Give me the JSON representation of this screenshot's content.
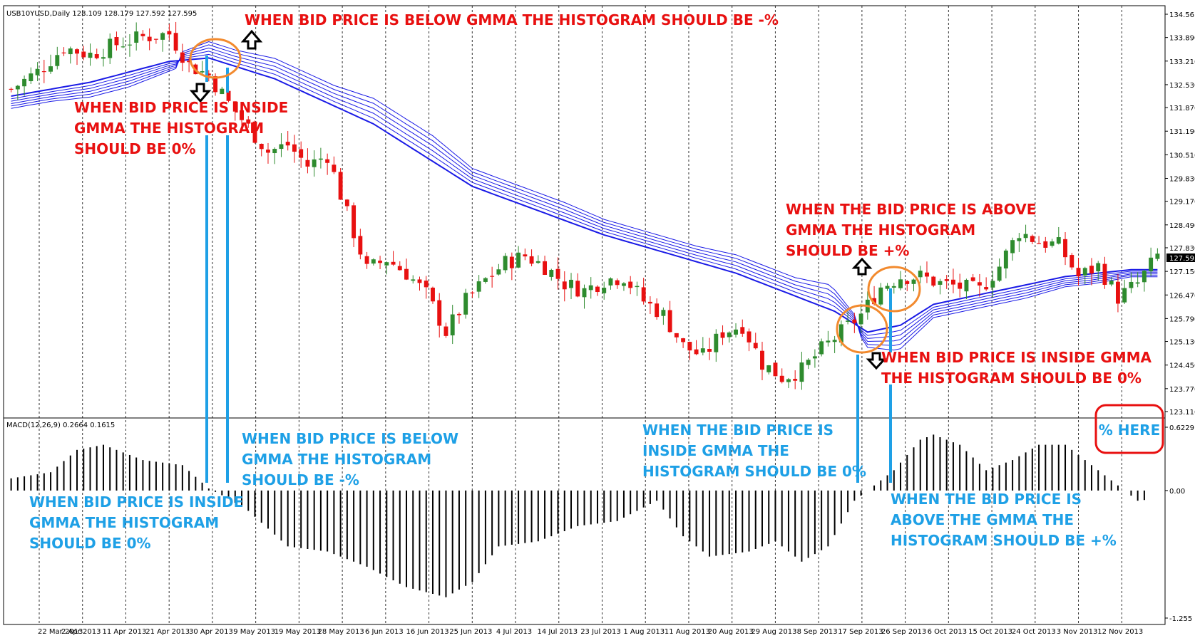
{
  "header": {
    "symbol_info": "USB10YUSD,Daily  128.109 128.179 127.592 127.595",
    "macd_info": "MACD(12,26,9) 0.2664 0.1615"
  },
  "colors": {
    "bull": "#2e8b2e",
    "bear": "#e81010",
    "gmma": "#1a1ae6",
    "histogram": "#000000",
    "anno_red": "#e81010",
    "anno_blue": "#1ea0e6",
    "circle": "#f28a2e",
    "marker": "#1ea0e6",
    "price_tag_bg": "#000000"
  },
  "chart_data": [
    {
      "type": "candlestick",
      "title": "",
      "yaxis_ticks": [
        "134.56",
        "133.890",
        "133.210",
        "132.530",
        "131.870",
        "131.190",
        "130.510",
        "129.830",
        "129.170",
        "128.490",
        "127.830",
        "127.150",
        "126.470",
        "125.790",
        "125.130",
        "124.450",
        "123.770",
        "123.110"
      ],
      "ylim": [
        123.11,
        134.56
      ],
      "current_price": "127.595",
      "xaxis_ticks": [
        "22 Mar 2013",
        "2 Apr 2013",
        "11 Apr 2013",
        "21 Apr 2013",
        "30 Apr 2013",
        "9 May 2013",
        "19 May 2013",
        "28 May 2013",
        "6 Jun 2013",
        "16 Jun 2013",
        "25 Jun 2013",
        "4 Jul 2013",
        "14 Jul 2013",
        "23 Jul 2013",
        "1 Aug 2013",
        "11 Aug 2013",
        "20 Aug 2013",
        "29 Aug 2013",
        "8 Sep 2013",
        "17 Sep 2013",
        "26 Sep 2013",
        "6 Oct 2013",
        "15 Oct 2013",
        "24 Oct 2013",
        "3 Nov 2013",
        "12 Nov 2013"
      ],
      "close_path": [
        [
          0,
          132.4
        ],
        [
          4,
          132.9
        ],
        [
          8,
          133.6
        ],
        [
          12,
          133.4
        ],
        [
          16,
          133.7
        ],
        [
          20,
          133.9
        ],
        [
          24,
          134.0
        ],
        [
          27,
          133.1
        ],
        [
          30,
          132.8
        ],
        [
          33,
          132.0
        ],
        [
          36,
          131.3
        ],
        [
          39,
          130.6
        ],
        [
          42,
          130.8
        ],
        [
          45,
          130.2
        ],
        [
          48,
          130.5
        ],
        [
          51,
          128.8
        ],
        [
          54,
          127.2
        ],
        [
          57,
          127.5
        ],
        [
          60,
          127.1
        ],
        [
          63,
          126.5
        ],
        [
          66,
          125.4
        ],
        [
          69,
          126.3
        ],
        [
          72,
          126.9
        ],
        [
          75,
          127.4
        ],
        [
          78,
          127.6
        ],
        [
          81,
          127.3
        ],
        [
          84,
          126.8
        ],
        [
          87,
          126.6
        ],
        [
          90,
          126.9
        ],
        [
          93,
          127.0
        ],
        [
          96,
          126.3
        ],
        [
          99,
          125.9
        ],
        [
          102,
          125.0
        ],
        [
          105,
          124.7
        ],
        [
          108,
          125.4
        ],
        [
          111,
          125.6
        ],
        [
          114,
          124.5
        ],
        [
          117,
          124.1
        ],
        [
          120,
          124.3
        ],
        [
          123,
          124.9
        ],
        [
          126,
          125.4
        ],
        [
          129,
          125.9
        ],
        [
          132,
          126.7
        ],
        [
          135,
          127.0
        ],
        [
          138,
          127.0
        ],
        [
          141,
          126.8
        ],
        [
          144,
          126.7
        ],
        [
          147,
          126.6
        ],
        [
          150,
          127.3
        ],
        [
          153,
          128.3
        ],
        [
          156,
          128.0
        ],
        [
          159,
          127.9
        ],
        [
          162,
          127.0
        ],
        [
          165,
          127.3
        ],
        [
          168,
          126.4
        ],
        [
          171,
          126.8
        ],
        [
          174,
          127.6
        ]
      ],
      "gmma_basis": [
        [
          0,
          132.2
        ],
        [
          12,
          132.6
        ],
        [
          24,
          133.2
        ],
        [
          30,
          133.3
        ],
        [
          40,
          132.7
        ],
        [
          55,
          131.4
        ],
        [
          70,
          129.6
        ],
        [
          90,
          128.2
        ],
        [
          110,
          127.1
        ],
        [
          125,
          126.0
        ],
        [
          130,
          125.4
        ],
        [
          135,
          125.6
        ],
        [
          140,
          126.2
        ],
        [
          150,
          126.6
        ],
        [
          160,
          127.0
        ],
        [
          170,
          127.2
        ],
        [
          174,
          127.2
        ]
      ],
      "histogram_path": [
        [
          0,
          0.12
        ],
        [
          6,
          0.18
        ],
        [
          10,
          0.4
        ],
        [
          14,
          0.45
        ],
        [
          20,
          0.3
        ],
        [
          26,
          0.25
        ],
        [
          30,
          0.02
        ],
        [
          33,
          -0.08
        ],
        [
          36,
          -0.2
        ],
        [
          42,
          -0.55
        ],
        [
          48,
          -0.6
        ],
        [
          54,
          -0.75
        ],
        [
          60,
          -0.95
        ],
        [
          66,
          -1.05
        ],
        [
          70,
          -0.9
        ],
        [
          74,
          -0.55
        ],
        [
          80,
          -0.5
        ],
        [
          86,
          -0.35
        ],
        [
          92,
          -0.3
        ],
        [
          98,
          -0.1
        ],
        [
          102,
          -0.45
        ],
        [
          106,
          -0.65
        ],
        [
          112,
          -0.6
        ],
        [
          116,
          -0.5
        ],
        [
          120,
          -0.7
        ],
        [
          124,
          -0.55
        ],
        [
          128,
          -0.1
        ],
        [
          130,
          0.0
        ],
        [
          134,
          0.2
        ],
        [
          138,
          0.5
        ],
        [
          140,
          0.55
        ],
        [
          144,
          0.45
        ],
        [
          148,
          0.2
        ],
        [
          152,
          0.3
        ],
        [
          156,
          0.45
        ],
        [
          160,
          0.45
        ],
        [
          164,
          0.25
        ],
        [
          168,
          0.05
        ],
        [
          171,
          -0.1
        ],
        [
          174,
          -0.08
        ]
      ],
      "macd_yaxis_ticks": [
        "0.6229",
        "0.00",
        "-1.255"
      ],
      "macd_ylim": [
        -1.255,
        0.6229
      ]
    }
  ],
  "annotations": {
    "red_top": "WHEN BID PRICE IS BELOW GMMA THE HISTOGRAM SHOULD BE -%",
    "red_inside_1": "WHEN BID PRICE IS INSIDE",
    "red_inside_2": "GMMA THE HISTOGRAM",
    "red_inside_3": "SHOULD BE 0%",
    "red_above_1": "WHEN THE BID PRICE IS ABOVE",
    "red_above_2": "GMMA THE HISTOGRAM",
    "red_above_3": "SHOULD BE +%",
    "red_inside_right_1": "WHEN BID PRICE IS INSIDE GMMA",
    "red_inside_right_2": "THE HISTOGRAM SHOULD BE 0%",
    "blue_below_1": "WHEN BID PRICE IS BELOW",
    "blue_below_2": "GMMA THE HISTOGRAM",
    "blue_below_3": "SHOULD BE -%",
    "blue_inside_1": "WHEN BID PRICE IS INSIDE",
    "blue_inside_2": "GMMA THE HISTOGRAM",
    "blue_inside_3": "SHOULD BE 0%",
    "blue_mid_1": "WHEN THE BID PRICE IS",
    "blue_mid_2": "INSIDE GMMA THE",
    "blue_mid_3": "HISTOGRAM SHOULD BE 0%",
    "blue_right_1": "WHEN THE BID PRICE IS",
    "blue_right_2": "ABOVE THE GMMA THE",
    "blue_right_3": "HISTOGRAM SHOULD BE +%",
    "percent_here": "% HERE"
  }
}
